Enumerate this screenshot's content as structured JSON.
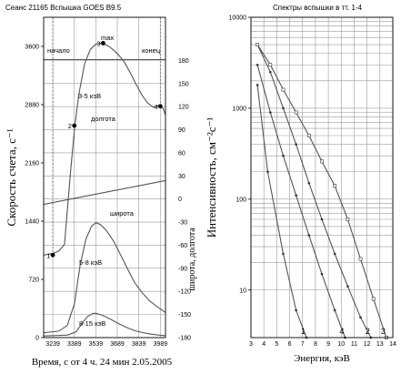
{
  "chart_data": [
    {
      "type": "line",
      "title": "Сеанс 21165      Вспышка GOES B9.5",
      "xlabel": "Время, с от 4 ч. 24 мин 2.05.2005",
      "ylabel": "Скорость счета, с⁻¹",
      "ylabel2": "широта, долгота",
      "xlim": [
        3175,
        4025
      ],
      "ylim": [
        0,
        3960
      ],
      "ylim2": [
        -180,
        236
      ],
      "x_ticks": [
        "3239",
        "3389",
        "3539",
        "3689",
        "3839",
        "3989"
      ],
      "y_ticks": [
        "0",
        "720",
        "1440",
        "2160",
        "2880",
        "3600"
      ],
      "y2_ticks": [
        "180",
        "150",
        "120",
        "90",
        "60",
        "30",
        "0",
        "-30",
        "-60",
        "-90",
        "-120",
        "-150",
        "-180"
      ],
      "series": [
        {
          "name": "3-5 кэВ",
          "x": [
            3175,
            3240,
            3280,
            3320,
            3360,
            3390,
            3420,
            3460,
            3500,
            3540,
            3580,
            3620,
            3660,
            3700,
            3740,
            3780,
            3820,
            3860,
            3900,
            3940,
            3980,
            4010,
            4025
          ],
          "values": [
            1020,
            1040,
            1070,
            1150,
            2000,
            2580,
            3000,
            3380,
            3560,
            3630,
            3640,
            3610,
            3560,
            3490,
            3400,
            3270,
            3130,
            3000,
            2900,
            2850,
            2870,
            2830,
            2750
          ]
        },
        {
          "name": "5-8 кэВ",
          "x": [
            3175,
            3280,
            3340,
            3390,
            3430,
            3470,
            3510,
            3540,
            3570,
            3610,
            3660,
            3710,
            3760,
            3810,
            3860,
            3910,
            3960,
            4010,
            4025
          ],
          "values": [
            60,
            80,
            150,
            420,
            900,
            1220,
            1380,
            1420,
            1400,
            1330,
            1200,
            1030,
            850,
            680,
            560,
            460,
            390,
            330,
            310
          ]
        },
        {
          "name": "8-15 кэВ",
          "x": [
            3175,
            3340,
            3400,
            3440,
            3480,
            3520,
            3540,
            3580,
            3640,
            3700,
            3760,
            3820,
            3900,
            3980,
            4025
          ],
          "values": [
            20,
            30,
            70,
            170,
            260,
            300,
            300,
            280,
            230,
            170,
            120,
            80,
            50,
            30,
            25
          ]
        },
        {
          "name": "долгота",
          "axis": "right",
          "x": [
            3175,
            4025
          ],
          "values": [
            181,
            181
          ]
        },
        {
          "name": "широта",
          "axis": "right",
          "x": [
            3175,
            4025
          ],
          "values": [
            -7,
            24
          ]
        }
      ],
      "points": [
        {
          "label": "1",
          "x": 3239,
          "y": 1020
        },
        {
          "label": "2",
          "x": 3389,
          "y": 2620
        },
        {
          "label": "3",
          "x": 3590,
          "y": 3640
        },
        {
          "label": "4",
          "x": 3989,
          "y": 2860
        }
      ],
      "interval_labels": {
        "start": "начало",
        "end": "конец",
        "peak": "max"
      }
    },
    {
      "type": "line",
      "title": "Спектры вспышки в тт. 1-4",
      "xlabel": "Энергия, кэВ",
      "ylabel": "Интенсивность, см⁻²с⁻¹",
      "xlim": [
        3,
        14
      ],
      "ylim": [
        3,
        10000
      ],
      "yscale": "log",
      "x_ticks": [
        "3",
        "4",
        "5",
        "6",
        "7",
        "8",
        "9",
        "10",
        "11",
        "12",
        "13",
        "14"
      ],
      "y_ticks": [
        "10000",
        "1000",
        "100",
        "10"
      ],
      "series": [
        {
          "name": "1",
          "x": [
            3.5,
            4.3,
            5.5,
            6.5,
            7.3
          ],
          "values": [
            1800,
            200,
            25,
            6,
            3
          ]
        },
        {
          "name": "2",
          "x": [
            3.5,
            4.5,
            5.5,
            6.5,
            7.5,
            8.5,
            9.5,
            10.5,
            11.5,
            12.3
          ],
          "values": [
            5000,
            2500,
            1000,
            400,
            150,
            60,
            25,
            11,
            5,
            3
          ]
        },
        {
          "name": "3",
          "x": [
            3.5,
            4.5,
            5.5,
            6.5,
            7.5,
            8.5,
            9.5,
            10.5,
            11.5,
            12.5,
            13.5
          ],
          "values": [
            5000,
            3000,
            1600,
            900,
            500,
            260,
            140,
            60,
            22,
            8,
            3
          ]
        },
        {
          "name": "4",
          "x": [
            3.5,
            4.5,
            5.5,
            6.5,
            7.5,
            8.5,
            9.5,
            10.3
          ],
          "values": [
            3000,
            900,
            300,
            110,
            40,
            15,
            6,
            3
          ]
        }
      ]
    }
  ]
}
